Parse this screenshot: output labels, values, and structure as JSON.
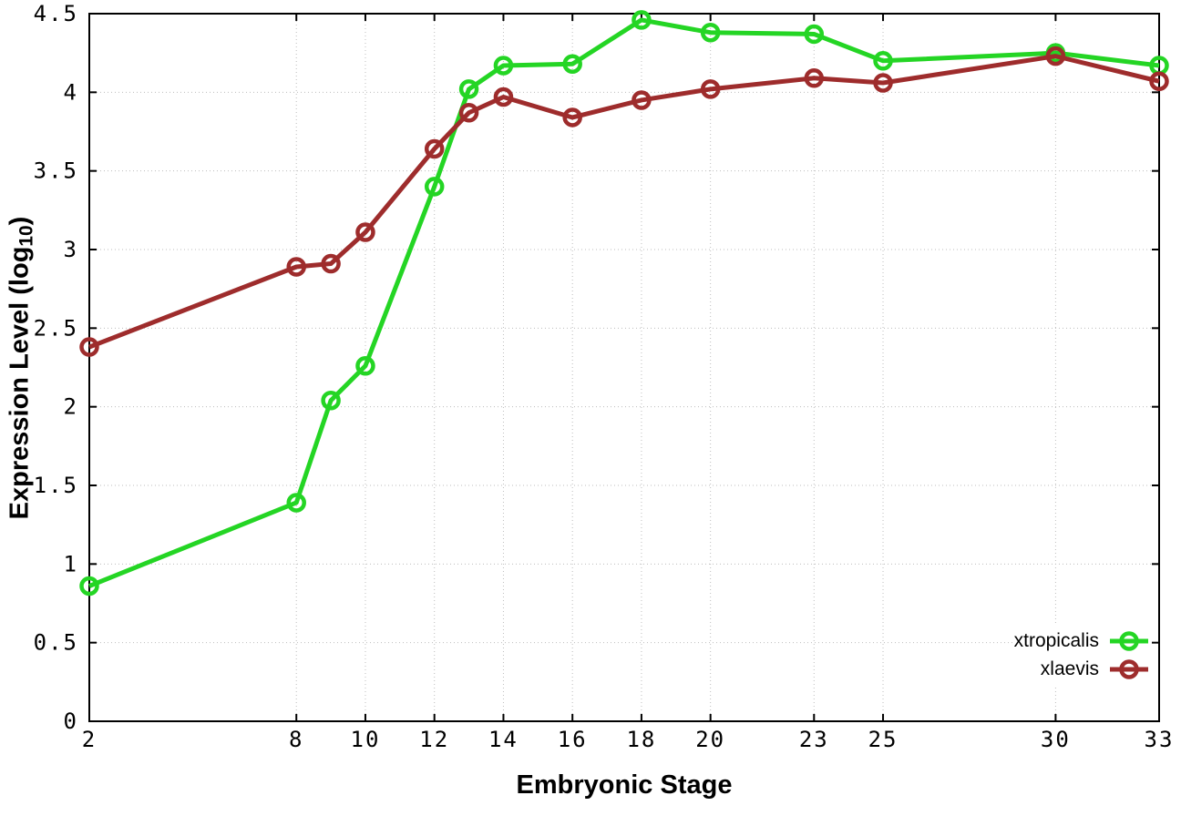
{
  "chart_data": {
    "type": "line",
    "title": "",
    "xlabel": "Embryonic Stage",
    "ylabel": "Expression Level (log10)",
    "ylabel_parts": {
      "main": "Expression Level (log",
      "sub": "10",
      "end": ")"
    },
    "xlim": [
      2,
      33
    ],
    "ylim": [
      0,
      4.5
    ],
    "grid": true,
    "grid_style": "dotted",
    "legend_position": "bottom-right",
    "x_ticks": [
      2,
      8,
      10,
      12,
      14,
      16,
      18,
      20,
      23,
      25,
      30,
      33
    ],
    "x_tick_labels": [
      "2",
      "8",
      "10",
      "12",
      "14",
      "16",
      "18",
      "20",
      "23",
      "25",
      "30",
      "33"
    ],
    "y_ticks": [
      0,
      0.5,
      1,
      1.5,
      2,
      2.5,
      3,
      3.5,
      4,
      4.5
    ],
    "y_tick_labels": [
      "0",
      "0.5",
      "1",
      "1.5",
      "2",
      "2.5",
      "3",
      "3.5",
      "4",
      "4.5"
    ],
    "x": [
      2,
      8,
      9,
      10,
      12,
      13,
      14,
      16,
      18,
      20,
      23,
      25,
      30,
      33
    ],
    "series": [
      {
        "name": "xtropicalis",
        "color": "#24d524",
        "marker": "open-circle",
        "values": [
          0.86,
          1.39,
          2.04,
          2.26,
          3.4,
          4.02,
          4.17,
          4.18,
          4.46,
          4.38,
          4.37,
          4.2,
          4.25,
          4.17
        ]
      },
      {
        "name": "xlaevis",
        "color": "#9e2c2c",
        "marker": "open-circle",
        "values": [
          2.38,
          2.89,
          2.91,
          3.11,
          3.64,
          3.87,
          3.97,
          3.84,
          3.95,
          4.02,
          4.09,
          4.06,
          4.23,
          4.07
        ]
      }
    ]
  },
  "colors": {
    "background": "#ffffff",
    "border": "#000000",
    "grid": "#bdbdbd",
    "tick_text": "#000000"
  }
}
